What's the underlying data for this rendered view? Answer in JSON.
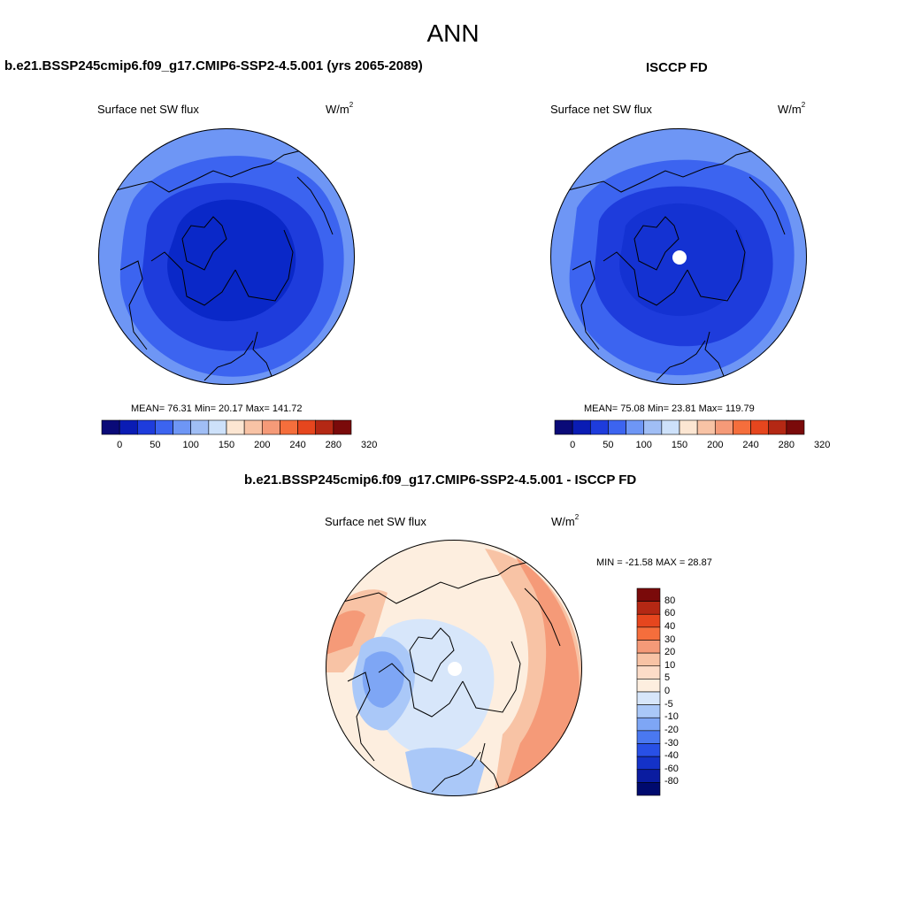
{
  "figure": {
    "title": "ANN"
  },
  "panels": {
    "model": {
      "header": "b.e21.BSSP245cmip6.f09_g17.CMIP6-SSP2-4.5.001 (yrs 2065-2089)",
      "variable": "Surface net SW flux",
      "units": "W/m",
      "units_sup": "2",
      "stats": "MEAN=  76.31  Min=  20.17  Max= 141.72"
    },
    "obs": {
      "header": "ISCCP FD",
      "variable": "Surface net SW flux",
      "units": "W/m",
      "units_sup": "2",
      "stats": "MEAN=  75.08  Min=  23.81  Max= 119.79"
    },
    "diff": {
      "header": "b.e21.BSSP245cmip6.f09_g17.CMIP6-SSP2-4.5.001 - ISCCP FD",
      "variable": "Surface net SW flux",
      "units": "W/m",
      "units_sup": "2",
      "stats": "MIN = -21.58 MAX =  28.87"
    }
  },
  "abs_colorbar": {
    "ticks": [
      "0",
      "50",
      "100",
      "150",
      "200",
      "240",
      "280",
      "320"
    ],
    "colors": [
      "#0a0a78",
      "#0a1cb4",
      "#1e3cdc",
      "#3c64f0",
      "#6e96f5",
      "#a0bef5",
      "#cde1fa",
      "#fce6d2",
      "#f8c3a5",
      "#f59a78",
      "#f56e3c",
      "#e6461e",
      "#b42814",
      "#7a0a0a"
    ]
  },
  "diff_colorbar": {
    "ticks": [
      "80",
      "60",
      "40",
      "30",
      "20",
      "10",
      "5",
      "0",
      "-5",
      "-10",
      "-20",
      "-30",
      "-40",
      "-60",
      "-80"
    ],
    "colors": [
      "#7a0a0a",
      "#b42814",
      "#e6461e",
      "#f56e3c",
      "#f59a78",
      "#f8c3a5",
      "#fcdcc8",
      "#fdeedf",
      "#d7e6fa",
      "#aac8f8",
      "#7ea6f5",
      "#4a78f0",
      "#2850e6",
      "#1432c8",
      "#0a1ca0",
      "#000a6e"
    ]
  },
  "colors": {
    "model_map": {
      "outer": "#6e96f5",
      "ring2": "#3c64f0",
      "ring3": "#1e3cdc",
      "core": "#0a28c8"
    },
    "obs_map": {
      "outer": "#6e96f5",
      "ring2": "#3c64f0",
      "ring3": "#1e3cdc",
      "core": "#1432d2",
      "missing": "#ffffff"
    },
    "diff_map": {
      "base": "#fdeedf",
      "warm1": "#f8c3a5",
      "warm2": "#f59a78",
      "cool1": "#d7e6fa",
      "cool2": "#aac8f8",
      "cool3": "#7ea6f5",
      "missing": "#ffffff"
    },
    "coast": "#000000"
  }
}
